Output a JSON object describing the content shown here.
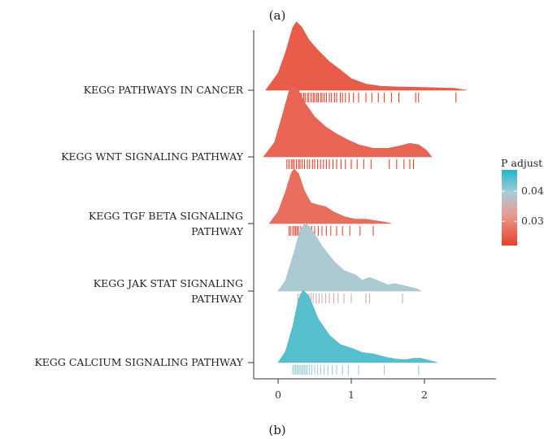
{
  "figure": {
    "top_label": "(a)",
    "bottom_label": "(b)"
  },
  "chart_data": {
    "type": "ridgeline",
    "title": "",
    "xlabel": "",
    "ylabel": "",
    "xlim": [
      -0.3,
      2.95
    ],
    "x_ticks": [
      0,
      1,
      2
    ],
    "x_tick_labels": [
      "0",
      "1",
      "2"
    ],
    "categories": [
      {
        "label": [
          "KEGG PATHWAYS IN CANCER"
        ],
        "p_adjust": 0.025,
        "density": [
          [
            -0.17,
            0
          ],
          [
            0,
            0.25
          ],
          [
            0.1,
            0.55
          ],
          [
            0.2,
            0.92
          ],
          [
            0.25,
            1.0
          ],
          [
            0.32,
            0.93
          ],
          [
            0.42,
            0.74
          ],
          [
            0.55,
            0.58
          ],
          [
            0.7,
            0.42
          ],
          [
            0.85,
            0.3
          ],
          [
            1.0,
            0.17
          ],
          [
            1.2,
            0.09
          ],
          [
            1.4,
            0.06
          ],
          [
            1.6,
            0.05
          ],
          [
            1.8,
            0.045
          ],
          [
            2.0,
            0.04
          ],
          [
            2.2,
            0.035
          ],
          [
            2.4,
            0.03
          ],
          [
            2.58,
            0
          ]
        ],
        "rug": [
          0.15,
          0.17,
          0.2,
          0.22,
          0.25,
          0.27,
          0.3,
          0.32,
          0.35,
          0.37,
          0.4,
          0.42,
          0.45,
          0.48,
          0.5,
          0.53,
          0.55,
          0.58,
          0.6,
          0.63,
          0.66,
          0.7,
          0.73,
          0.77,
          0.8,
          0.85,
          0.88,
          0.92,
          0.97,
          1.03,
          1.1,
          1.2,
          1.28,
          1.37,
          1.45,
          1.55,
          1.65,
          1.88,
          1.92,
          2.43
        ]
      },
      {
        "label": [
          "KEGG WNT SIGNALING PATHWAY"
        ],
        "p_adjust": 0.026,
        "density": [
          [
            -0.2,
            0
          ],
          [
            -0.05,
            0.2
          ],
          [
            0.05,
            0.55
          ],
          [
            0.15,
            0.92
          ],
          [
            0.2,
            1.0
          ],
          [
            0.27,
            0.95
          ],
          [
            0.37,
            0.75
          ],
          [
            0.5,
            0.56
          ],
          [
            0.65,
            0.42
          ],
          [
            0.8,
            0.32
          ],
          [
            0.95,
            0.24
          ],
          [
            1.1,
            0.17
          ],
          [
            1.3,
            0.12
          ],
          [
            1.5,
            0.12
          ],
          [
            1.65,
            0.15
          ],
          [
            1.8,
            0.19
          ],
          [
            1.92,
            0.17
          ],
          [
            2.02,
            0.1
          ],
          [
            2.1,
            0
          ]
        ],
        "rug": [
          0.12,
          0.15,
          0.18,
          0.2,
          0.22,
          0.25,
          0.28,
          0.3,
          0.33,
          0.36,
          0.4,
          0.43,
          0.47,
          0.5,
          0.54,
          0.58,
          0.62,
          0.66,
          0.7,
          0.75,
          0.8,
          0.86,
          0.92,
          1.0,
          1.08,
          1.17,
          1.27,
          1.52,
          1.62,
          1.72,
          1.8,
          1.85
        ]
      },
      {
        "label": [
          "KEGG TGF BETA SIGNALING",
          "PATHWAY"
        ],
        "p_adjust": 0.027,
        "density": [
          [
            -0.12,
            0
          ],
          [
            0.0,
            0.22
          ],
          [
            0.1,
            0.58
          ],
          [
            0.18,
            0.93
          ],
          [
            0.22,
            1.0
          ],
          [
            0.28,
            0.92
          ],
          [
            0.36,
            0.6
          ],
          [
            0.45,
            0.38
          ],
          [
            0.55,
            0.34
          ],
          [
            0.65,
            0.31
          ],
          [
            0.75,
            0.22
          ],
          [
            0.9,
            0.13
          ],
          [
            1.05,
            0.08
          ],
          [
            1.2,
            0.08
          ],
          [
            1.3,
            0.06
          ],
          [
            1.45,
            0.03
          ],
          [
            1.55,
            0
          ]
        ],
        "rug": [
          0.15,
          0.17,
          0.2,
          0.22,
          0.24,
          0.26,
          0.28,
          0.31,
          0.34,
          0.38,
          0.42,
          0.46,
          0.5,
          0.55,
          0.6,
          0.66,
          0.72,
          0.8,
          0.88,
          0.98,
          1.12,
          1.3
        ]
      },
      {
        "label": [
          "KEGG JAK STAT SIGNALING",
          "PATHWAY"
        ],
        "p_adjust": 0.039,
        "density": [
          [
            0.0,
            0
          ],
          [
            0.1,
            0.15
          ],
          [
            0.2,
            0.5
          ],
          [
            0.3,
            0.88
          ],
          [
            0.37,
            1.0
          ],
          [
            0.45,
            0.92
          ],
          [
            0.6,
            0.66
          ],
          [
            0.75,
            0.45
          ],
          [
            0.9,
            0.3
          ],
          [
            1.05,
            0.24
          ],
          [
            1.15,
            0.16
          ],
          [
            1.25,
            0.2
          ],
          [
            1.35,
            0.16
          ],
          [
            1.5,
            0.09
          ],
          [
            1.6,
            0.11
          ],
          [
            1.75,
            0.07
          ],
          [
            1.9,
            0.03
          ],
          [
            1.95,
            0
          ]
        ],
        "rug": [
          0.27,
          0.3,
          0.33,
          0.36,
          0.39,
          0.42,
          0.45,
          0.48,
          0.52,
          0.56,
          0.6,
          0.65,
          0.7,
          0.76,
          0.82,
          0.9,
          1.0,
          1.2,
          1.25,
          1.7
        ]
      },
      {
        "label": [
          "KEGG CALCIUM SIGNALING PATHWAY"
        ],
        "p_adjust": 0.044,
        "density": [
          [
            0.0,
            0
          ],
          [
            0.1,
            0.15
          ],
          [
            0.2,
            0.5
          ],
          [
            0.28,
            0.88
          ],
          [
            0.34,
            1.0
          ],
          [
            0.42,
            0.92
          ],
          [
            0.55,
            0.6
          ],
          [
            0.7,
            0.38
          ],
          [
            0.85,
            0.25
          ],
          [
            1.0,
            0.2
          ],
          [
            1.15,
            0.14
          ],
          [
            1.3,
            0.12
          ],
          [
            1.45,
            0.08
          ],
          [
            1.6,
            0.05
          ],
          [
            1.75,
            0.04
          ],
          [
            1.85,
            0.06
          ],
          [
            1.95,
            0.06
          ],
          [
            2.1,
            0.02
          ],
          [
            2.18,
            0
          ]
        ],
        "rug": [
          0.2,
          0.22,
          0.24,
          0.26,
          0.28,
          0.3,
          0.32,
          0.34,
          0.36,
          0.38,
          0.4,
          0.43,
          0.46,
          0.5,
          0.54,
          0.58,
          0.63,
          0.68,
          0.74,
          0.8,
          0.88,
          0.96,
          1.1,
          1.45,
          1.92
        ]
      }
    ],
    "legend": {
      "title": "P adjust",
      "position": "right",
      "range": [
        0.022,
        0.047
      ],
      "ticks": [
        0.04,
        0.03
      ],
      "tick_labels": [
        "0.04",
        "0.03"
      ],
      "colors": [
        "#E8412D",
        "#E89A8E",
        "#A9CCD6",
        "#1EB6C9"
      ]
    },
    "grid": false
  }
}
